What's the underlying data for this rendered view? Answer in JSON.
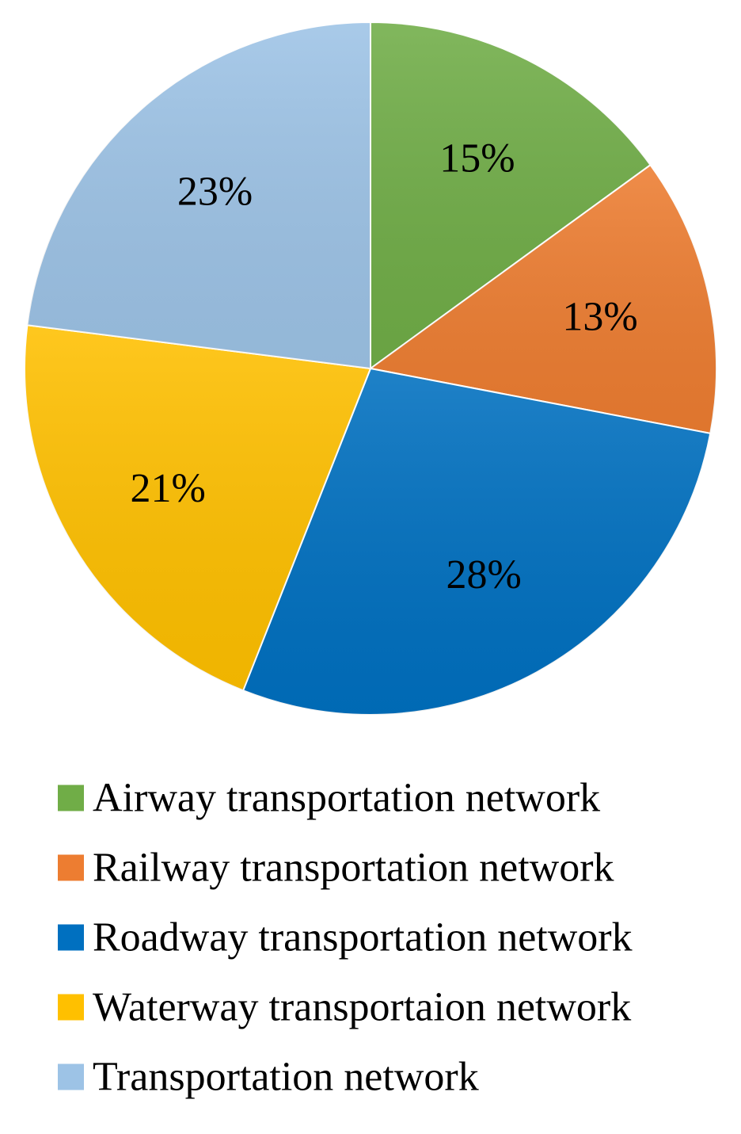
{
  "chart_data": {
    "type": "pie",
    "start_angle": "12 o'clock",
    "direction": "clockwise",
    "legend_position": "bottom",
    "data_labels": "percent",
    "slices": [
      {
        "label": "Airway transportation network",
        "value": 15,
        "display": "15%",
        "color": "#70AD47"
      },
      {
        "label": "Railway transportation network",
        "value": 13,
        "display": "13%",
        "color": "#ED7D31"
      },
      {
        "label": "Roadway transportation network",
        "value": 28,
        "display": "28%",
        "color": "#0070C0"
      },
      {
        "label": "Waterway transportaion network",
        "value": 21,
        "display": "21%",
        "color": "#FFC000"
      },
      {
        "label": "Transportation network",
        "value": 23,
        "display": "23%",
        "color": "#9DC3E6"
      }
    ]
  }
}
